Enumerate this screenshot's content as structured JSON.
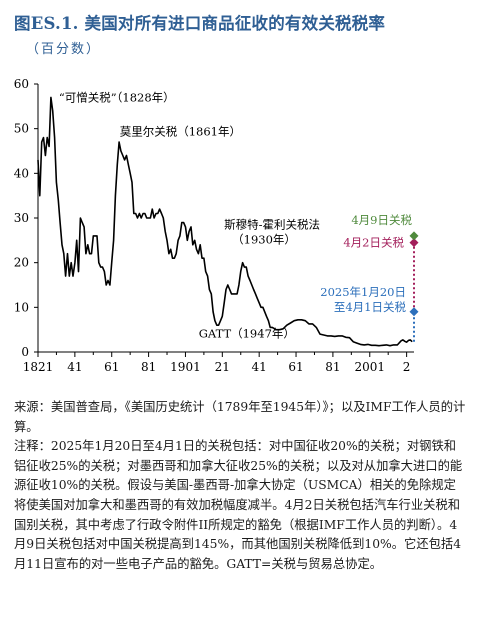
{
  "figure": {
    "title": "图ES.1. 美国对所有进口商品征收的有效关税税率",
    "subtitle": "（百分数）"
  },
  "chart_data": {
    "type": "line",
    "title": "图ES.1. 美国对所有进口商品征收的有效关税税率",
    "ylabel": "百分数",
    "xlabel": "",
    "xlim": [
      1821,
      2025
    ],
    "ylim": [
      0,
      60
    ],
    "grid": false,
    "x_tick_labels": [
      "1821",
      "41",
      "61",
      "81",
      "1901",
      "21",
      "41",
      "61",
      "81",
      "2001",
      "2"
    ],
    "x_tick_values": [
      1821,
      1841,
      1861,
      1881,
      1901,
      1921,
      1941,
      1961,
      1981,
      2001,
      2021
    ],
    "y_ticks": [
      0,
      10,
      20,
      30,
      40,
      50,
      60
    ],
    "series": [
      {
        "color": "#000000",
        "x": [
          1821,
          1822,
          1823,
          1824,
          1825,
          1826,
          1827,
          1828,
          1829,
          1830,
          1831,
          1832,
          1833,
          1834,
          1835,
          1836,
          1837,
          1838,
          1839,
          1840,
          1841,
          1842,
          1843,
          1844,
          1845,
          1846,
          1847,
          1848,
          1849,
          1850,
          1851,
          1852,
          1853,
          1854,
          1855,
          1856,
          1857,
          1858,
          1859,
          1860,
          1861,
          1862,
          1863,
          1864,
          1865,
          1866,
          1867,
          1868,
          1869,
          1870,
          1871,
          1872,
          1873,
          1874,
          1875,
          1876,
          1877,
          1878,
          1879,
          1880,
          1881,
          1882,
          1883,
          1884,
          1885,
          1886,
          1887,
          1888,
          1889,
          1890,
          1891,
          1892,
          1893,
          1894,
          1895,
          1896,
          1897,
          1898,
          1899,
          1900,
          1901,
          1902,
          1903,
          1904,
          1905,
          1906,
          1907,
          1908,
          1909,
          1910,
          1911,
          1912,
          1913,
          1914,
          1915,
          1916,
          1917,
          1918,
          1919,
          1920,
          1921,
          1922,
          1923,
          1924,
          1925,
          1926,
          1927,
          1928,
          1929,
          1930,
          1931,
          1932,
          1933,
          1934,
          1935,
          1936,
          1937,
          1938,
          1939,
          1940,
          1941,
          1942,
          1943,
          1944,
          1945,
          1946,
          1947,
          1948,
          1949,
          1950,
          1952,
          1954,
          1956,
          1958,
          1960,
          1962,
          1964,
          1966,
          1968,
          1970,
          1972,
          1974,
          1976,
          1978,
          1980,
          1982,
          1984,
          1986,
          1988,
          1990,
          1992,
          1994,
          1996,
          1998,
          2000,
          2002,
          2004,
          2006,
          2008,
          2010,
          2012,
          2014,
          2016,
          2018,
          2019,
          2020,
          2021,
          2022,
          2023,
          2024
        ],
        "y": [
          43,
          35,
          47,
          48,
          44,
          48,
          46,
          57,
          54,
          48,
          38,
          34,
          29,
          24,
          22,
          17,
          22,
          17,
          20,
          17,
          20,
          25,
          18,
          30,
          29,
          28,
          22,
          24,
          22,
          22,
          26,
          26,
          26,
          20,
          19,
          19,
          18,
          15,
          16,
          15,
          20,
          25,
          35,
          42,
          47,
          45,
          44,
          43,
          44,
          42,
          40,
          38,
          31,
          31,
          30,
          31,
          30,
          31,
          31,
          30,
          30,
          30,
          32,
          30,
          31,
          31,
          32,
          31,
          30,
          27,
          25,
          22,
          23,
          21,
          21,
          22,
          25,
          26,
          29,
          29,
          28,
          25,
          27,
          28,
          24,
          25,
          23,
          22,
          24,
          21,
          21,
          18,
          17,
          14,
          13,
          9,
          7,
          6,
          6,
          7,
          8,
          11,
          14,
          15,
          14,
          13,
          13,
          13,
          13,
          15,
          18,
          20,
          19,
          19,
          17,
          16,
          15,
          14,
          13,
          12,
          11,
          10,
          10,
          9,
          8,
          7,
          5.5,
          5.5,
          5.3,
          5,
          5,
          5.2,
          6,
          6.5,
          7,
          7.2,
          7.2,
          7,
          6.3,
          6.3,
          5.5,
          4,
          3.8,
          3.6,
          3.6,
          3.5,
          3.6,
          3.6,
          3.3,
          3.2,
          2.3,
          2,
          1.7,
          1.6,
          1.7,
          1.5,
          1.5,
          1.4,
          1.5,
          1.6,
          1.4,
          1.6,
          1.6,
          2.5,
          2.7,
          2.4,
          2.2,
          2.6,
          2.7,
          2.3
        ]
      }
    ],
    "scenarios": [
      {
        "label": "2025年1月20日\n至4月1日关税",
        "value": 9,
        "color": "#2c6fbb",
        "shape": "diamond"
      },
      {
        "label": "4月2日关税",
        "value": 24.5,
        "color": "#a31f5b",
        "shape": "diamond"
      },
      {
        "label": "4月9日关税",
        "value": 26,
        "color": "#4f8a3c",
        "shape": "diamond"
      }
    ],
    "annotations": [
      {
        "text": "“可憎关税”（1828年）",
        "x": 1828,
        "y": 57
      },
      {
        "text": "莫里尔关税（1861年）",
        "x": 1861,
        "y": 47
      },
      {
        "text": "斯穆特-霍利关税法\n（1930年）",
        "x": 1930,
        "y": 20
      },
      {
        "text": "GATT（1947年）",
        "x": 1947,
        "y": 5.5
      }
    ]
  },
  "notes": {
    "source": "来源：美国普查局，《美国历史统计（1789年至1945年）》；以及IMF工作人员的计算。",
    "note": "注释：2025年1月20日至4月1日的关税包括：对中国征收20%的关税；对钢铁和铝征收25%的关税；对墨西哥和加拿大征收25%的关税；以及对从加拿大进口的能源征收10%的关税。假设与美国-墨西哥-加拿大协定（USMCA）相关的免除规定将使美国对加拿大和墨西哥的有效加税幅度减半。4月2日关税包括汽车行业关税和国别关税，其中考虑了行政令附件II所规定的豁免（根据IMF工作人员的判断）。4月9日关税包括对中国关税提高到145%，而其他国别关税降低到10%。它还包括4月11日宣布的对一些电子产品的豁免。GATT=关税与贸易总协定。"
  }
}
